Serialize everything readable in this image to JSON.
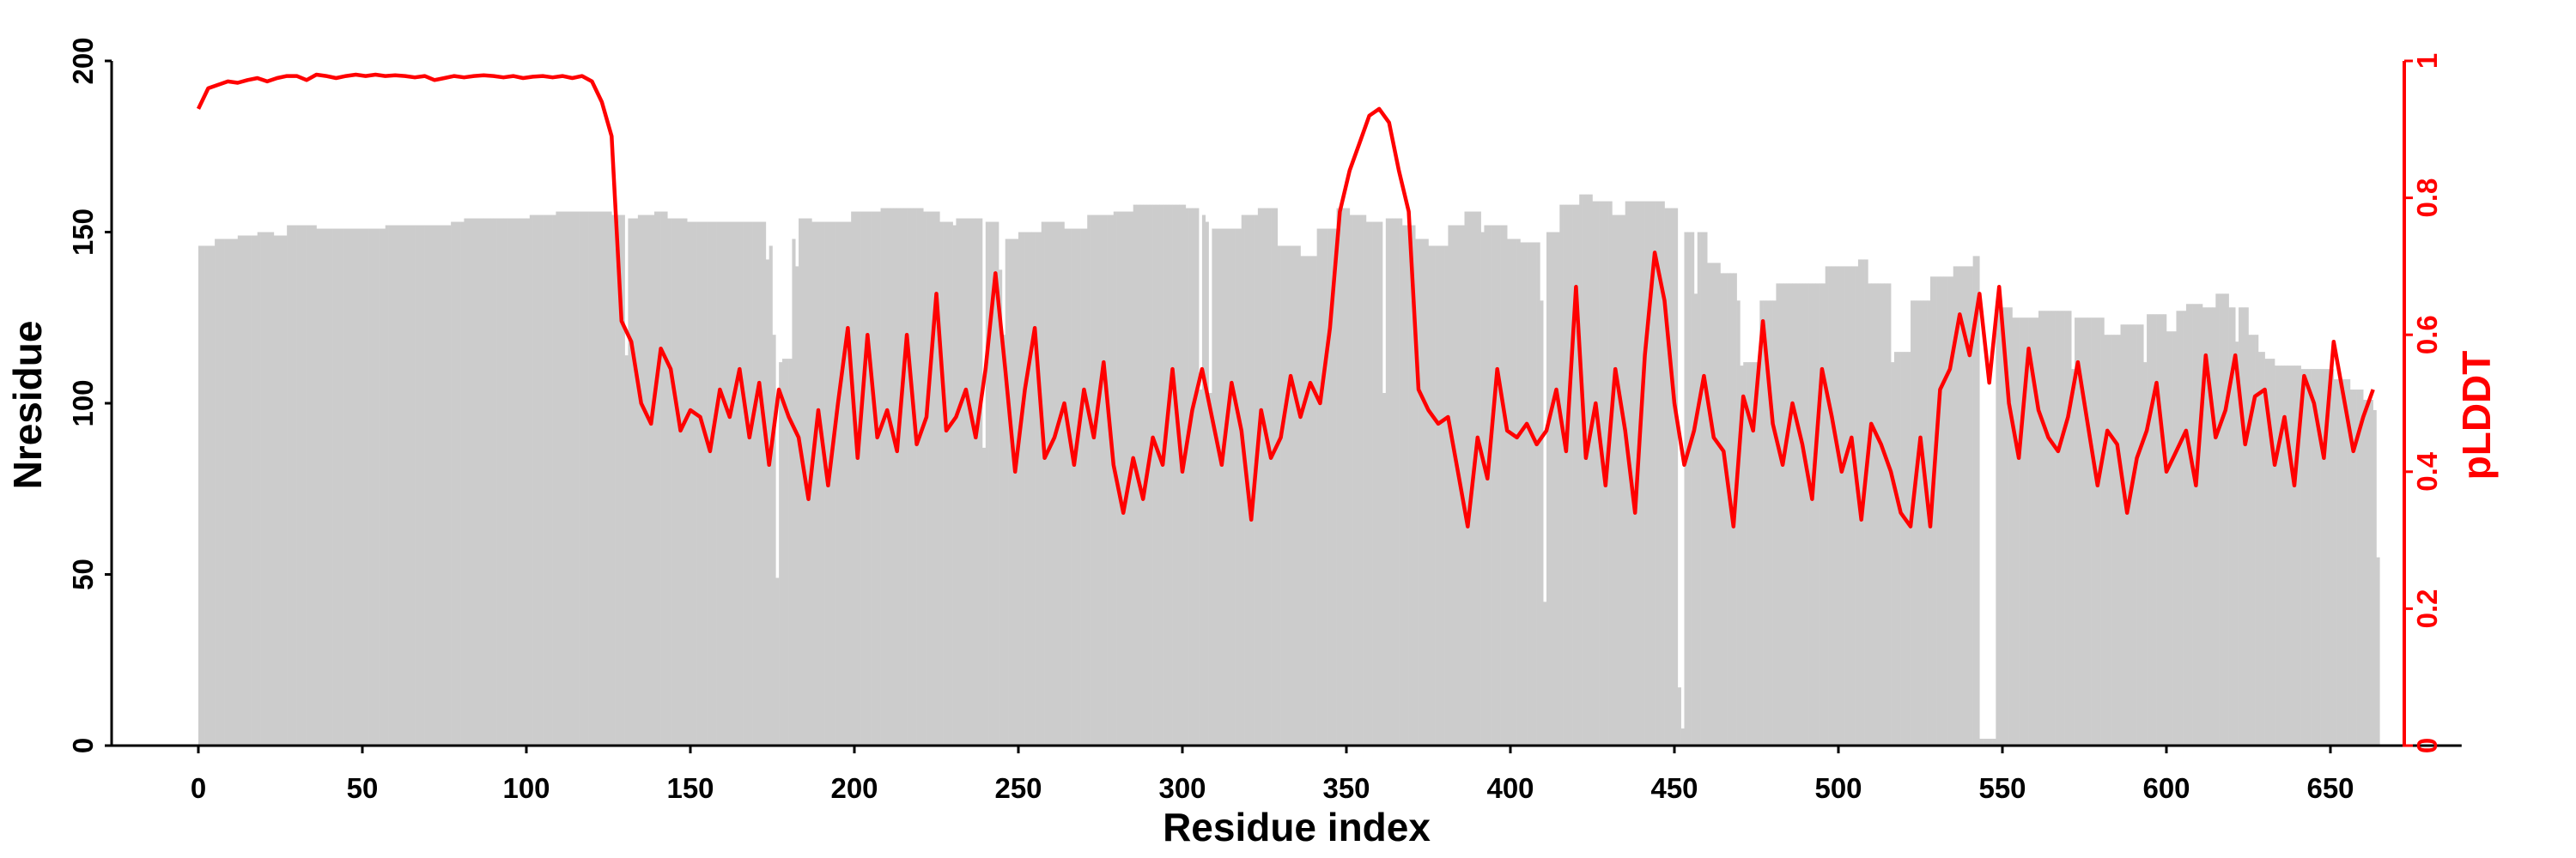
{
  "chart_data": {
    "type": "bar+line",
    "title": "",
    "xlabel": "Residue index",
    "ylabel": "Nresidue",
    "ylabel_right": "pLDDT",
    "xlim": [
      -25,
      690
    ],
    "ylim": [
      0,
      200
    ],
    "ylim_right": [
      0,
      1
    ],
    "grid": false,
    "x_ticks": [
      "0",
      "50",
      "100",
      "150",
      "200",
      "250",
      "300",
      "350",
      "400",
      "450",
      "500",
      "550",
      "600",
      "650"
    ],
    "y_ticks": [
      "0",
      "50",
      "100",
      "150",
      "200"
    ],
    "y_right_ticks": [
      "0",
      "0.2",
      "0.4",
      "0.6",
      "0.8",
      "1"
    ],
    "colors": {
      "bars": "#cccccc",
      "line": "#ff0000",
      "axis": "#000000",
      "right_axis": "#ff0000"
    },
    "series": [
      {
        "name": "Nresidue",
        "type": "bar",
        "axis": "left",
        "segments_start_end_value": [
          [
            0,
            4,
            146
          ],
          [
            5,
            11,
            148
          ],
          [
            12,
            17,
            149
          ],
          [
            18,
            22,
            150
          ],
          [
            23,
            26,
            149
          ],
          [
            27,
            35,
            152
          ],
          [
            36,
            56,
            151
          ],
          [
            57,
            76,
            152
          ],
          [
            77,
            80,
            153
          ],
          [
            81,
            100,
            154
          ],
          [
            101,
            108,
            155
          ],
          [
            109,
            125,
            156
          ],
          [
            126,
            129,
            155
          ],
          [
            130,
            130,
            114
          ],
          [
            131,
            133,
            154
          ],
          [
            134,
            138,
            155
          ],
          [
            139,
            142,
            156
          ],
          [
            143,
            148,
            154
          ],
          [
            149,
            172,
            153
          ],
          [
            173,
            173,
            142
          ],
          [
            174,
            174,
            146
          ],
          [
            175,
            175,
            120
          ],
          [
            176,
            176,
            49
          ],
          [
            177,
            177,
            112
          ],
          [
            178,
            180,
            113
          ],
          [
            181,
            181,
            148
          ],
          [
            182,
            182,
            140
          ],
          [
            183,
            186,
            154
          ],
          [
            187,
            198,
            153
          ],
          [
            199,
            207,
            156
          ],
          [
            208,
            220,
            157
          ],
          [
            221,
            225,
            156
          ],
          [
            226,
            229,
            153
          ],
          [
            230,
            230,
            152
          ],
          [
            231,
            238,
            154
          ],
          [
            239,
            239,
            87
          ],
          [
            240,
            243,
            153
          ],
          [
            244,
            244,
            139
          ],
          [
            245,
            245,
            120
          ],
          [
            246,
            249,
            148
          ],
          [
            250,
            256,
            150
          ],
          [
            257,
            263,
            153
          ],
          [
            264,
            270,
            151
          ],
          [
            271,
            278,
            155
          ],
          [
            279,
            284,
            156
          ],
          [
            285,
            300,
            158
          ],
          [
            301,
            304,
            157
          ],
          [
            305,
            305,
            104
          ],
          [
            306,
            306,
            155
          ],
          [
            307,
            307,
            153
          ],
          [
            308,
            308,
            103
          ],
          [
            309,
            317,
            151
          ],
          [
            318,
            322,
            155
          ],
          [
            323,
            328,
            157
          ],
          [
            329,
            335,
            146
          ],
          [
            336,
            340,
            143
          ],
          [
            341,
            346,
            151
          ],
          [
            347,
            350,
            157
          ],
          [
            351,
            355,
            155
          ],
          [
            356,
            360,
            153
          ],
          [
            361,
            361,
            103
          ],
          [
            362,
            366,
            154
          ],
          [
            367,
            370,
            152
          ],
          [
            371,
            374,
            148
          ],
          [
            375,
            380,
            146
          ],
          [
            381,
            385,
            152
          ],
          [
            386,
            390,
            156
          ],
          [
            391,
            391,
            150
          ],
          [
            392,
            398,
            152
          ],
          [
            399,
            402,
            148
          ],
          [
            403,
            408,
            147
          ],
          [
            409,
            409,
            130
          ],
          [
            410,
            410,
            42
          ],
          [
            411,
            414,
            150
          ],
          [
            415,
            420,
            158
          ],
          [
            421,
            424,
            161
          ],
          [
            425,
            430,
            159
          ],
          [
            431,
            434,
            155
          ],
          [
            435,
            446,
            159
          ],
          [
            447,
            450,
            157
          ],
          [
            451,
            451,
            17
          ],
          [
            452,
            452,
            5
          ],
          [
            453,
            455,
            150
          ],
          [
            456,
            456,
            132
          ],
          [
            457,
            459,
            150
          ],
          [
            460,
            463,
            141
          ],
          [
            464,
            468,
            138
          ],
          [
            469,
            469,
            130
          ],
          [
            470,
            470,
            111
          ],
          [
            471,
            475,
            112
          ],
          [
            476,
            480,
            130
          ],
          [
            481,
            495,
            135
          ],
          [
            496,
            505,
            140
          ],
          [
            506,
            508,
            142
          ],
          [
            509,
            515,
            135
          ],
          [
            516,
            516,
            112
          ],
          [
            517,
            521,
            115
          ],
          [
            522,
            527,
            130
          ],
          [
            528,
            534,
            137
          ],
          [
            535,
            540,
            140
          ],
          [
            541,
            542,
            143
          ],
          [
            543,
            547,
            2
          ],
          [
            548,
            552,
            128
          ],
          [
            553,
            560,
            125
          ],
          [
            561,
            570,
            127
          ],
          [
            571,
            571,
            110
          ],
          [
            572,
            580,
            125
          ],
          [
            581,
            585,
            120
          ],
          [
            586,
            592,
            123
          ],
          [
            593,
            593,
            112
          ],
          [
            594,
            599,
            126
          ],
          [
            600,
            602,
            121
          ],
          [
            603,
            605,
            127
          ],
          [
            606,
            610,
            129
          ],
          [
            611,
            614,
            128
          ],
          [
            615,
            618,
            132
          ],
          [
            619,
            620,
            128
          ],
          [
            621,
            621,
            118
          ],
          [
            622,
            624,
            128
          ],
          [
            625,
            627,
            120
          ],
          [
            628,
            629,
            115
          ],
          [
            630,
            632,
            113
          ],
          [
            633,
            640,
            111
          ],
          [
            641,
            650,
            110
          ],
          [
            651,
            655,
            107
          ],
          [
            656,
            659,
            104
          ],
          [
            660,
            662,
            101
          ],
          [
            663,
            663,
            98
          ],
          [
            664,
            664,
            55
          ]
        ]
      },
      {
        "name": "pLDDT",
        "type": "line",
        "axis": "right",
        "x_start": 0,
        "x_step": 3,
        "values": [
          0.93,
          0.96,
          0.965,
          0.97,
          0.968,
          0.972,
          0.975,
          0.97,
          0.975,
          0.978,
          0.978,
          0.972,
          0.98,
          0.978,
          0.975,
          0.978,
          0.98,
          0.978,
          0.98,
          0.978,
          0.979,
          0.978,
          0.976,
          0.978,
          0.972,
          0.975,
          0.978,
          0.976,
          0.978,
          0.979,
          0.978,
          0.976,
          0.978,
          0.975,
          0.977,
          0.978,
          0.976,
          0.978,
          0.975,
          0.978,
          0.97,
          0.94,
          0.89,
          0.62,
          0.59,
          0.5,
          0.47,
          0.58,
          0.55,
          0.46,
          0.49,
          0.48,
          0.43,
          0.52,
          0.48,
          0.55,
          0.45,
          0.53,
          0.41,
          0.52,
          0.48,
          0.45,
          0.36,
          0.49,
          0.38,
          0.5,
          0.61,
          0.42,
          0.6,
          0.45,
          0.49,
          0.43,
          0.6,
          0.44,
          0.48,
          0.66,
          0.46,
          0.48,
          0.52,
          0.45,
          0.55,
          0.69,
          0.55,
          0.4,
          0.52,
          0.61,
          0.42,
          0.45,
          0.5,
          0.41,
          0.52,
          0.45,
          0.56,
          0.41,
          0.34,
          0.42,
          0.36,
          0.45,
          0.41,
          0.55,
          0.4,
          0.49,
          0.55,
          0.48,
          0.41,
          0.53,
          0.46,
          0.33,
          0.49,
          0.42,
          0.45,
          0.54,
          0.48,
          0.53,
          0.5,
          0.61,
          0.78,
          0.84,
          0.88,
          0.92,
          0.93,
          0.91,
          0.84,
          0.78,
          0.52,
          0.49,
          0.47,
          0.48,
          0.4,
          0.32,
          0.45,
          0.39,
          0.55,
          0.46,
          0.45,
          0.47,
          0.44,
          0.46,
          0.52,
          0.43,
          0.67,
          0.42,
          0.5,
          0.38,
          0.55,
          0.46,
          0.34,
          0.57,
          0.72,
          0.65,
          0.5,
          0.41,
          0.46,
          0.54,
          0.45,
          0.43,
          0.32,
          0.51,
          0.46,
          0.62,
          0.47,
          0.41,
          0.5,
          0.44,
          0.36,
          0.55,
          0.48,
          0.4,
          0.45,
          0.33,
          0.47,
          0.44,
          0.4,
          0.34,
          0.32,
          0.45,
          0.32,
          0.52,
          0.55,
          0.63,
          0.57,
          0.66,
          0.53,
          0.67,
          0.5,
          0.42,
          0.58,
          0.49,
          0.45,
          0.43,
          0.48,
          0.56,
          0.47,
          0.38,
          0.46,
          0.44,
          0.34,
          0.42,
          0.46,
          0.53,
          0.4,
          0.43,
          0.46,
          0.38,
          0.57,
          0.45,
          0.49,
          0.57,
          0.44,
          0.51,
          0.52,
          0.41,
          0.48,
          0.38,
          0.54,
          0.5,
          0.42,
          0.59,
          0.51,
          0.43,
          0.48,
          0.52
        ]
      }
    ]
  }
}
